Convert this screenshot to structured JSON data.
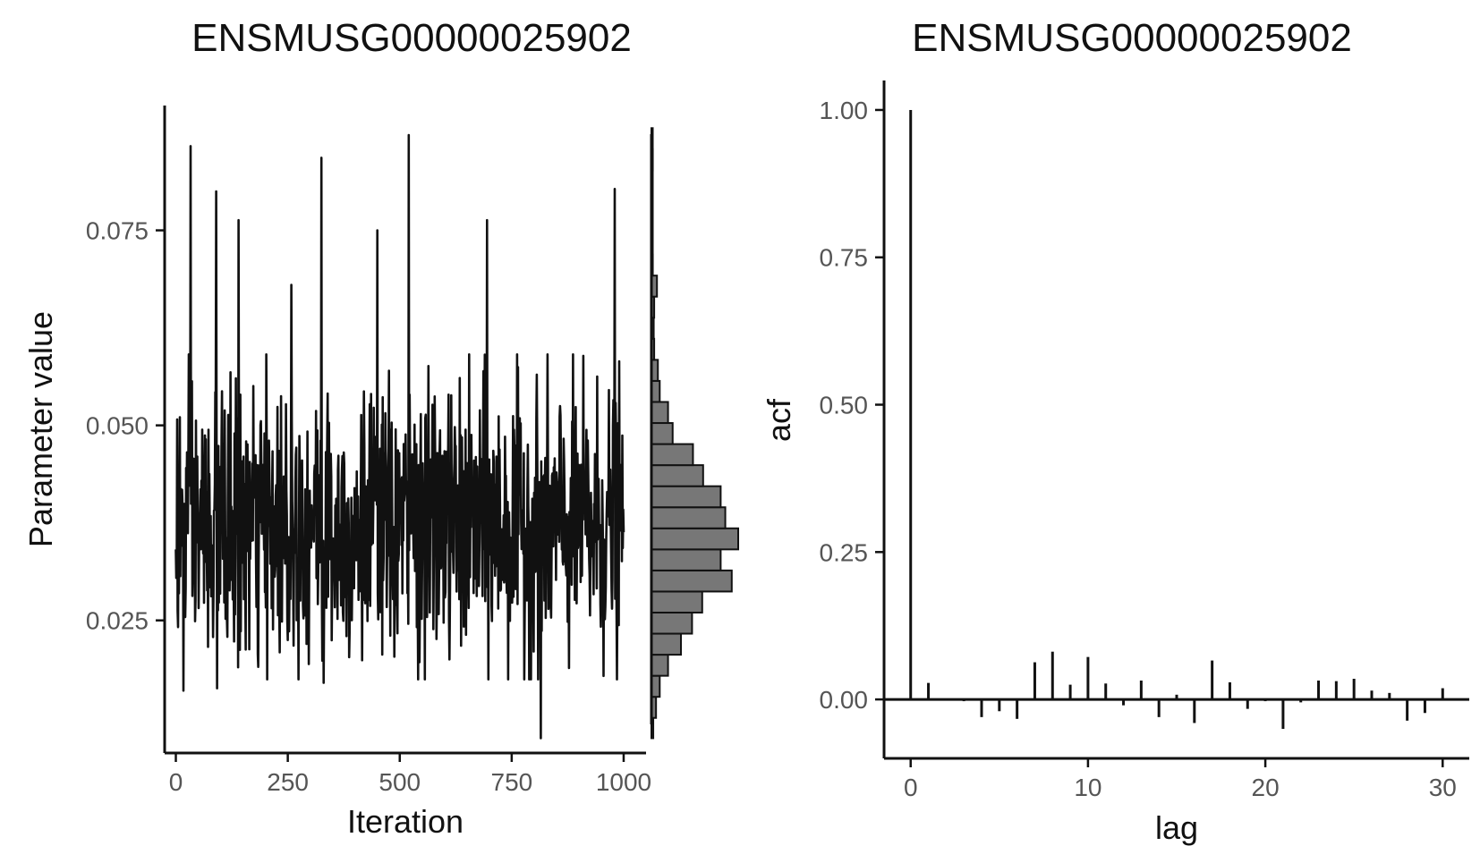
{
  "chart_data": [
    {
      "type": "line",
      "title": "ENSMUSG00000025902",
      "xlabel": "Iteration",
      "ylabel": "Parameter value",
      "xlim": [
        -25,
        1050
      ],
      "ylim": [
        0.008,
        0.091
      ],
      "x_ticks": [
        0,
        250,
        500,
        750,
        1000
      ],
      "x_tick_labels": [
        "0",
        "250",
        "500",
        "750",
        "1000"
      ],
      "y_ticks": [
        0.025,
        0.05,
        0.075
      ],
      "y_tick_labels": [
        "0.025",
        "0.050",
        "0.075"
      ],
      "grid": false,
      "legend": "none",
      "trace_color": "#111111",
      "trace": {
        "iterations": [
          0,
          1000
        ],
        "mean": 0.037,
        "sd": 0.0085,
        "min": 0.0099,
        "max": 0.0872,
        "peaks": [
          {
            "x": 33,
            "y": 0.0858
          },
          {
            "x": 90,
            "y": 0.08
          },
          {
            "x": 140,
            "y": 0.0763
          },
          {
            "x": 258,
            "y": 0.068
          },
          {
            "x": 325,
            "y": 0.0843
          },
          {
            "x": 450,
            "y": 0.075
          },
          {
            "x": 520,
            "y": 0.0872
          },
          {
            "x": 695,
            "y": 0.0763
          },
          {
            "x": 980,
            "y": 0.0803
          }
        ],
        "troughs": [
          {
            "x": 17,
            "y": 0.016
          },
          {
            "x": 92,
            "y": 0.0163
          },
          {
            "x": 330,
            "y": 0.017
          },
          {
            "x": 815,
            "y": 0.0099
          }
        ]
      },
      "histogram": {
        "color": "#777777",
        "bins": [
          {
            "y0": 0.0099,
            "y1": 0.0125,
            "count": 4
          },
          {
            "y0": 0.0125,
            "y1": 0.0152,
            "count": 10
          },
          {
            "y0": 0.0152,
            "y1": 0.0179,
            "count": 18
          },
          {
            "y0": 0.0179,
            "y1": 0.0206,
            "count": 36
          },
          {
            "y0": 0.0206,
            "y1": 0.0233,
            "count": 64
          },
          {
            "y0": 0.0233,
            "y1": 0.026,
            "count": 88
          },
          {
            "y0": 0.026,
            "y1": 0.0287,
            "count": 110
          },
          {
            "y0": 0.0287,
            "y1": 0.0314,
            "count": 174
          },
          {
            "y0": 0.0314,
            "y1": 0.0341,
            "count": 150
          },
          {
            "y0": 0.0341,
            "y1": 0.0368,
            "count": 188
          },
          {
            "y0": 0.0368,
            "y1": 0.0395,
            "count": 160
          },
          {
            "y0": 0.0395,
            "y1": 0.0422,
            "count": 150
          },
          {
            "y0": 0.0422,
            "y1": 0.0449,
            "count": 112
          },
          {
            "y0": 0.0449,
            "y1": 0.0476,
            "count": 90
          },
          {
            "y0": 0.0476,
            "y1": 0.0503,
            "count": 46
          },
          {
            "y0": 0.0503,
            "y1": 0.053,
            "count": 36
          },
          {
            "y0": 0.053,
            "y1": 0.0557,
            "count": 18
          },
          {
            "y0": 0.0557,
            "y1": 0.0584,
            "count": 14
          },
          {
            "y0": 0.0584,
            "y1": 0.0611,
            "count": 6
          },
          {
            "y0": 0.0611,
            "y1": 0.0638,
            "count": 5
          },
          {
            "y0": 0.0638,
            "y1": 0.0665,
            "count": 6
          },
          {
            "y0": 0.0665,
            "y1": 0.0692,
            "count": 12
          },
          {
            "y0": 0.0692,
            "y1": 0.0719,
            "count": 3
          },
          {
            "y0": 0.0719,
            "y1": 0.0746,
            "count": 2
          },
          {
            "y0": 0.0746,
            "y1": 0.0773,
            "count": 2
          },
          {
            "y0": 0.0773,
            "y1": 0.08,
            "count": 2
          },
          {
            "y0": 0.08,
            "y1": 0.0827,
            "count": 2
          },
          {
            "y0": 0.0827,
            "y1": 0.0854,
            "count": 3
          },
          {
            "y0": 0.0854,
            "y1": 0.0881,
            "count": 2
          }
        ]
      }
    },
    {
      "type": "bar",
      "title": "ENSMUSG00000025902",
      "xlabel": "lag",
      "ylabel": "acf",
      "xlim": [
        -1.5,
        31.5
      ],
      "ylim": [
        -0.1,
        1.05
      ],
      "x_ticks": [
        0,
        10,
        20,
        30
      ],
      "x_tick_labels": [
        "0",
        "10",
        "20",
        "30"
      ],
      "y_ticks": [
        0,
        0.25,
        0.5,
        0.75,
        1
      ],
      "y_tick_labels": [
        "0.00",
        "0.25",
        "0.50",
        "0.75",
        "1.00"
      ],
      "grid": false,
      "legend": "none",
      "baseline": 0,
      "lags": [
        0,
        1,
        2,
        3,
        4,
        5,
        6,
        7,
        8,
        9,
        10,
        11,
        12,
        13,
        14,
        15,
        16,
        17,
        18,
        19,
        20,
        21,
        22,
        23,
        24,
        25,
        26,
        27,
        28,
        29,
        30
      ],
      "values": [
        1.0,
        0.028,
        -0.002,
        -0.003,
        -0.03,
        -0.02,
        -0.033,
        0.063,
        0.081,
        0.025,
        0.072,
        0.027,
        -0.01,
        0.032,
        -0.03,
        0.008,
        -0.04,
        0.066,
        0.029,
        -0.016,
        -0.003,
        -0.05,
        -0.005,
        0.032,
        0.031,
        0.035,
        0.015,
        0.011,
        -0.036,
        -0.023,
        0.019
      ]
    }
  ]
}
